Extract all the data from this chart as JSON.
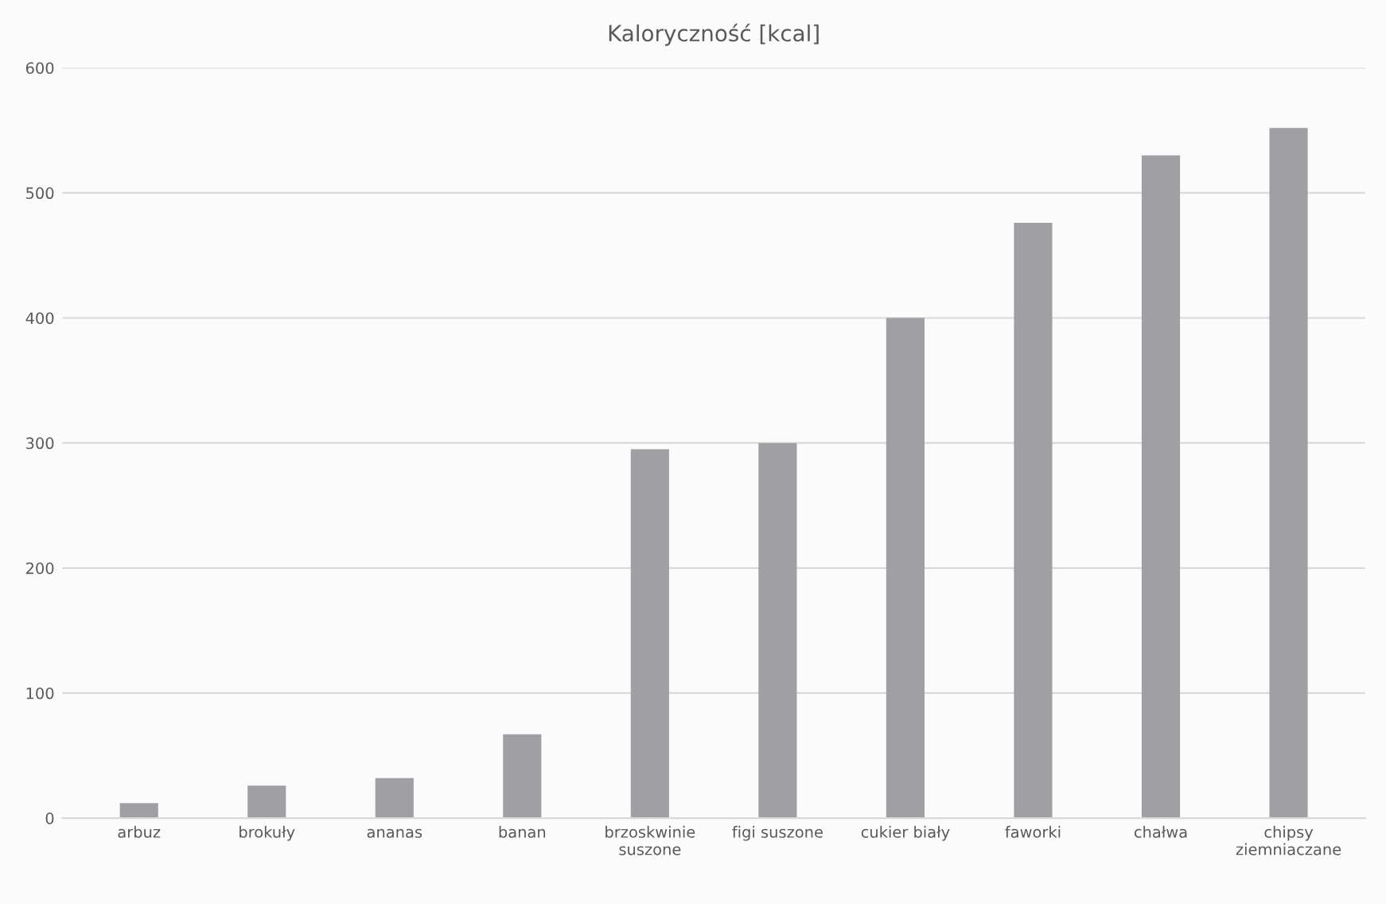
{
  "chart_data": {
    "type": "bar",
    "title": "Kaloryczność [kcal]",
    "categories": [
      "arbuz",
      "brokuły",
      "ananas",
      "banan",
      "brzoskwinie suszone",
      "figi suszone",
      "cukier biały",
      "faworki",
      "chałwa",
      "chipsy ziemniaczane"
    ],
    "values": [
      12,
      26,
      32,
      67,
      295,
      300,
      400,
      476,
      530,
      552
    ],
    "color": "#a0a0a4",
    "ylim": [
      0,
      600
    ],
    "yticks": [
      0,
      100,
      200,
      300,
      400,
      500,
      600
    ],
    "grid": "y"
  }
}
